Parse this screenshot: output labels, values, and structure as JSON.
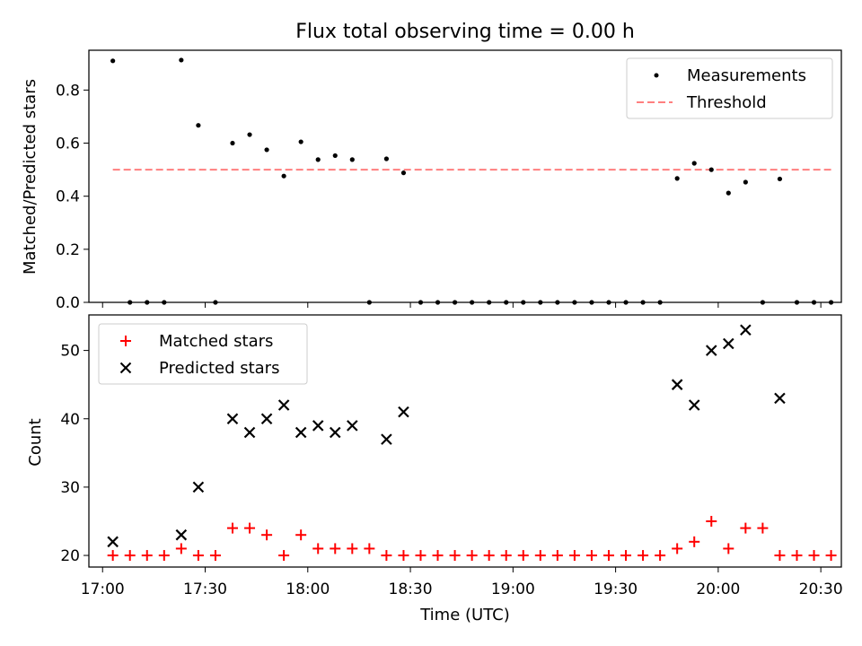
{
  "chart_data": [
    {
      "type": "scatter",
      "title": "Flux total observing time = 0.00 h",
      "xlabel": "",
      "ylabel": "Matched/Predicted stars",
      "xlim": [
        "16:56",
        "20:36"
      ],
      "ylim": [
        0,
        0.95
      ],
      "yticks": [
        0.0,
        0.2,
        0.4,
        0.6,
        0.8
      ],
      "ytick_labels": [
        "0.0",
        "0.2",
        "0.4",
        "0.6",
        "0.8"
      ],
      "grid": false,
      "legend_position": "top-right",
      "legend": [
        "Measurements",
        "Threshold"
      ],
      "series": [
        {
          "name": "Measurements",
          "marker": "dot",
          "color": "#000000",
          "x": [
            "17:03",
            "17:08",
            "17:13",
            "17:18",
            "17:23",
            "17:28",
            "17:33",
            "17:38",
            "17:43",
            "17:48",
            "17:53",
            "17:58",
            "18:03",
            "18:08",
            "18:13",
            "18:18",
            "18:23",
            "18:28",
            "18:33",
            "18:38",
            "18:43",
            "18:48",
            "18:53",
            "18:58",
            "19:03",
            "19:08",
            "19:13",
            "19:18",
            "19:23",
            "19:28",
            "19:33",
            "19:38",
            "19:43",
            "19:48",
            "19:53",
            "19:58",
            "20:03",
            "20:08",
            "20:13",
            "20:18",
            "20:23",
            "20:28",
            "20:33"
          ],
          "y": [
            0.91,
            0,
            0,
            0,
            0.913,
            0.667,
            0,
            0.6,
            0.632,
            0.575,
            0.476,
            0.605,
            0.538,
            0.553,
            0.538,
            0,
            0.541,
            0.488,
            0,
            0,
            0,
            0,
            0,
            0,
            0,
            0,
            0,
            0,
            0,
            0,
            0,
            0,
            0,
            0.467,
            0.524,
            0.5,
            0.412,
            0.453,
            0,
            0.465,
            0,
            0,
            0
          ]
        },
        {
          "name": "Threshold",
          "style": "dashed",
          "color": "#ff7f7f",
          "x": [
            "17:03",
            "20:33"
          ],
          "y": [
            0.5,
            0.5
          ]
        }
      ]
    },
    {
      "type": "scatter",
      "title": "",
      "xlabel": "Time (UTC)",
      "ylabel": "Count",
      "xlim": [
        "16:56",
        "20:36"
      ],
      "ylim": [
        18.3,
        55.2
      ],
      "xticks": [
        "17:00",
        "17:30",
        "18:00",
        "18:30",
        "19:00",
        "19:30",
        "20:00",
        "20:30"
      ],
      "yticks": [
        20,
        30,
        40,
        50
      ],
      "ytick_labels": [
        "20",
        "30",
        "40",
        "50"
      ],
      "grid": false,
      "legend_position": "top-left",
      "legend": [
        "Matched stars",
        "Predicted stars"
      ],
      "series": [
        {
          "name": "Matched stars",
          "marker": "plus",
          "color": "#ff0000",
          "x": [
            "17:03",
            "17:08",
            "17:13",
            "17:18",
            "17:23",
            "17:28",
            "17:33",
            "17:38",
            "17:43",
            "17:48",
            "17:53",
            "17:58",
            "18:03",
            "18:08",
            "18:13",
            "18:18",
            "18:23",
            "18:28",
            "18:33",
            "18:38",
            "18:43",
            "18:48",
            "18:53",
            "18:58",
            "19:03",
            "19:08",
            "19:13",
            "19:18",
            "19:23",
            "19:28",
            "19:33",
            "19:38",
            "19:43",
            "19:48",
            "19:53",
            "19:58",
            "20:03",
            "20:08",
            "20:13",
            "20:18",
            "20:23",
            "20:28",
            "20:33"
          ],
          "y": [
            20,
            20,
            20,
            20,
            21,
            20,
            20,
            24,
            24,
            23,
            20,
            23,
            21,
            21,
            21,
            21,
            20,
            20,
            20,
            20,
            20,
            20,
            20,
            20,
            20,
            20,
            20,
            20,
            20,
            20,
            20,
            20,
            20,
            21,
            22,
            25,
            21,
            24,
            24,
            20,
            20,
            20,
            20
          ]
        },
        {
          "name": "Predicted stars",
          "marker": "x",
          "color": "#000000",
          "x": [
            "17:03",
            "17:23",
            "17:28",
            "17:38",
            "17:43",
            "17:48",
            "17:53",
            "17:58",
            "18:03",
            "18:08",
            "18:13",
            "18:23",
            "18:28",
            "19:48",
            "19:53",
            "19:58",
            "20:03",
            "20:08",
            "20:18"
          ],
          "y": [
            22,
            23,
            30,
            40,
            38,
            40,
            42,
            38,
            39,
            38,
            39,
            37,
            41,
            45,
            42,
            50,
            51,
            53,
            43
          ]
        }
      ]
    }
  ]
}
